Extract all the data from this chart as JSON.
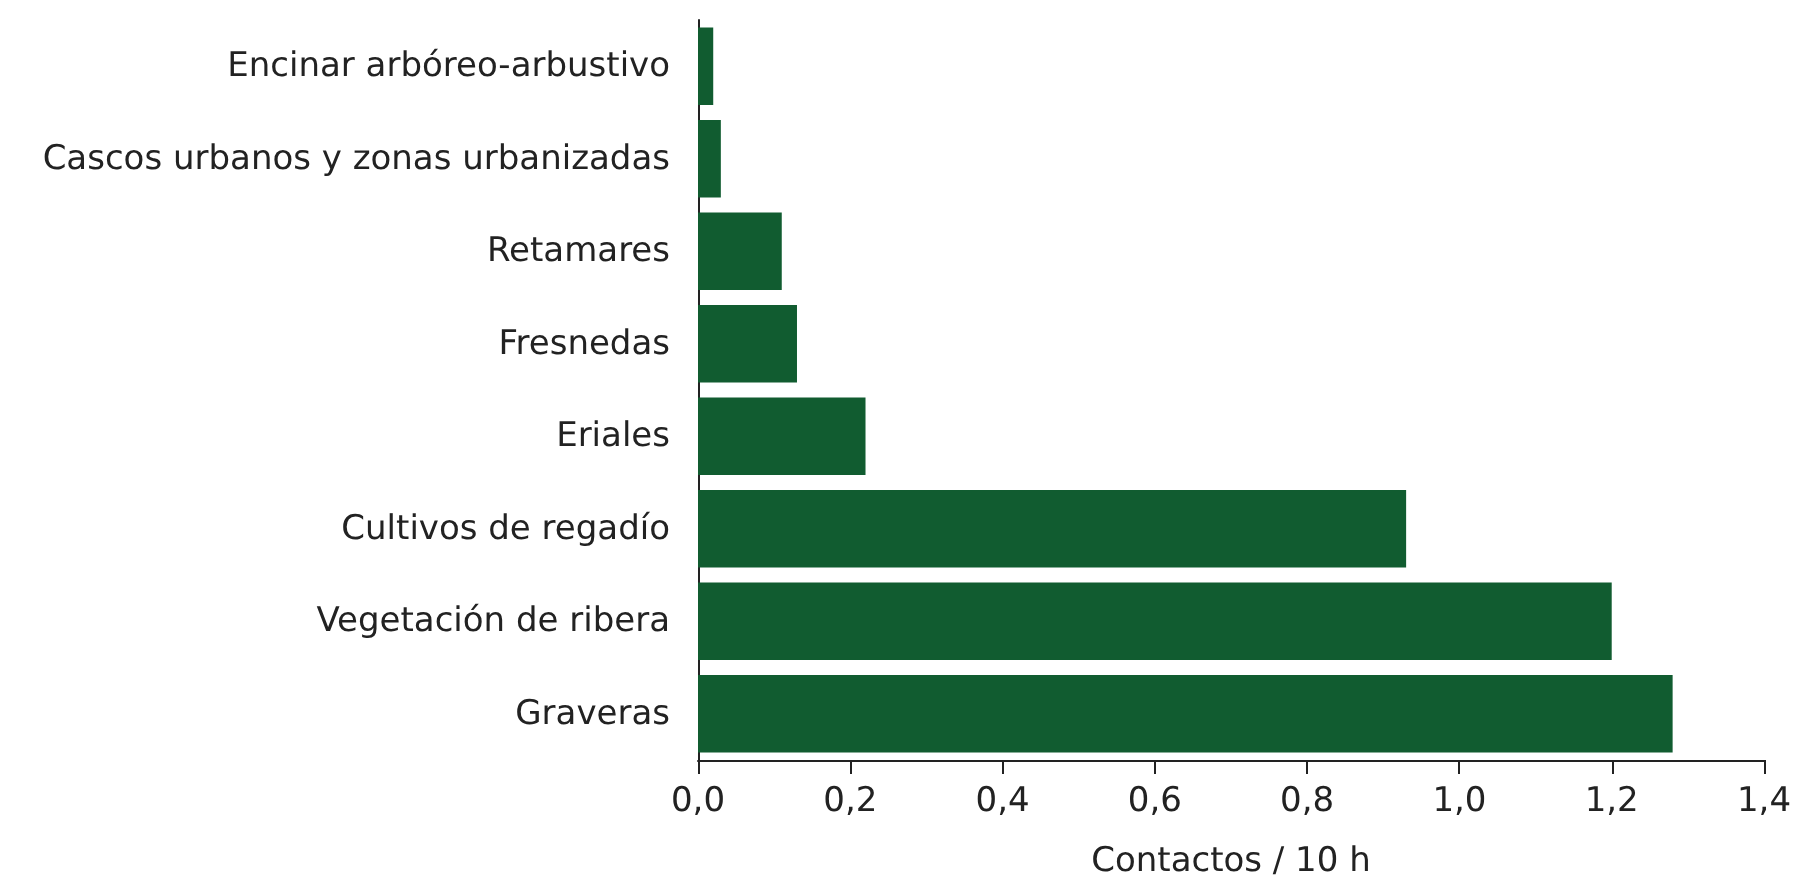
{
  "chart_data": {
    "type": "bar",
    "orientation": "horizontal",
    "xlabel": "Contactos / 10 h",
    "categories": [
      "Encinar arbóreo-arbustivo",
      "Cascos urbanos y zonas urbanizadas",
      "Retamares",
      "Fresnedas",
      "Eriales",
      "Cultivos de regadío",
      "Vegetación de ribera",
      "Graveras"
    ],
    "values": [
      0.02,
      0.03,
      0.11,
      0.13,
      0.22,
      0.93,
      1.2,
      1.28
    ],
    "color": "#115c30",
    "xlim": [
      0,
      1.4
    ],
    "xticks": [
      {
        "value": 0,
        "label": "0,0"
      },
      {
        "value": 0.2,
        "label": "0,2"
      },
      {
        "value": 0.4,
        "label": "0,4"
      },
      {
        "value": 0.6,
        "label": "0,6"
      },
      {
        "value": 0.8,
        "label": "0,8"
      },
      {
        "value": 1,
        "label": "1,0"
      },
      {
        "value": 1.2,
        "label": "1,2"
      },
      {
        "value": 1.4,
        "label": "1,4"
      }
    ],
    "grid": false
  }
}
